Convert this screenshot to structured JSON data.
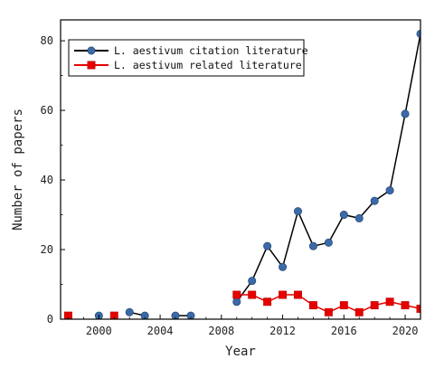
{
  "chart_data": {
    "type": "line",
    "title": "",
    "xlabel": "Year",
    "ylabel": "Number of papers",
    "xlim": [
      1997.5,
      2021
    ],
    "ylim": [
      0,
      86
    ],
    "xticks": [
      2000,
      2004,
      2008,
      2012,
      2016,
      2020
    ],
    "yticks": [
      0,
      20,
      40,
      60,
      80
    ],
    "grid": false,
    "legend_position": "top-left",
    "series": [
      {
        "name": "L. aestivum citation literature",
        "color": "#3a6aa8",
        "marker": "circle",
        "line_color": "#000000",
        "segments": [
          [
            [
              2000,
              1
            ]
          ],
          [
            [
              2002,
              2
            ],
            [
              2003,
              1
            ]
          ],
          [
            [
              2005,
              1
            ],
            [
              2006,
              1
            ]
          ],
          [
            [
              2009,
              5
            ],
            [
              2010,
              11
            ],
            [
              2011,
              21
            ],
            [
              2012,
              15
            ],
            [
              2013,
              31
            ],
            [
              2014,
              21
            ],
            [
              2015,
              22
            ],
            [
              2016,
              30
            ],
            [
              2017,
              29
            ],
            [
              2018,
              34
            ],
            [
              2019,
              37
            ],
            [
              2020,
              59
            ],
            [
              2021,
              82
            ]
          ]
        ]
      },
      {
        "name": "L. aestivum related literature",
        "color": "#e60000",
        "marker": "square",
        "line_color": "#e60000",
        "segments": [
          [
            [
              1998,
              1
            ]
          ],
          [
            [
              2001,
              1
            ]
          ],
          [
            [
              2009,
              7
            ],
            [
              2010,
              7
            ],
            [
              2011,
              5
            ],
            [
              2012,
              7
            ],
            [
              2013,
              7
            ],
            [
              2014,
              4
            ],
            [
              2015,
              2
            ],
            [
              2016,
              4
            ],
            [
              2017,
              2
            ],
            [
              2018,
              4
            ],
            [
              2019,
              5
            ],
            [
              2020,
              4
            ],
            [
              2021,
              3
            ]
          ]
        ]
      }
    ]
  }
}
